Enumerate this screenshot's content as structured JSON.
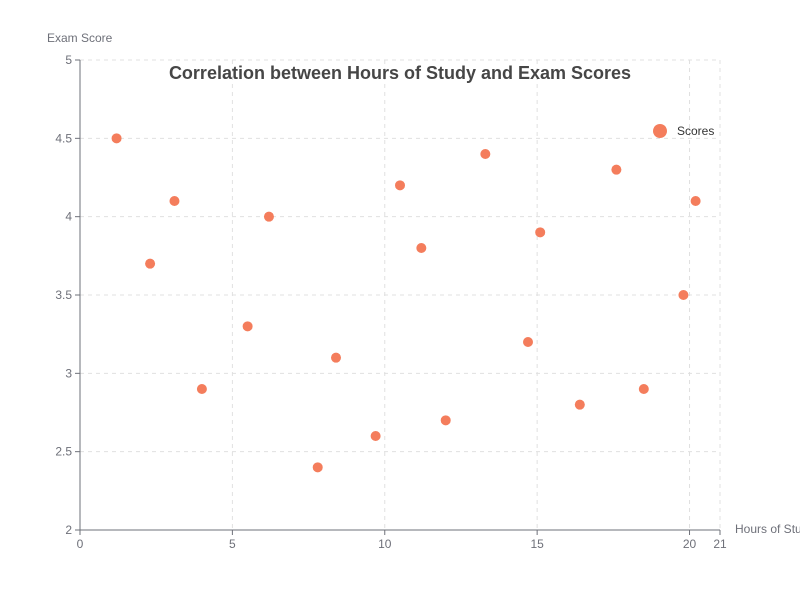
{
  "chart_data": {
    "type": "scatter",
    "title": "Correlation between Hours of Study and Exam Scores",
    "xlabel": "Hours of Study",
    "ylabel": "Exam Score",
    "xlim": [
      0,
      21
    ],
    "ylim": [
      2,
      5
    ],
    "x_ticks": [
      0,
      5,
      10,
      15,
      20,
      21
    ],
    "y_ticks": [
      2,
      2.5,
      3,
      3.5,
      4,
      4.5,
      5
    ],
    "grid": true,
    "legend_position": "top-right",
    "series": [
      {
        "name": "Scores",
        "color": "#f47d5c",
        "points": [
          [
            1.2,
            4.5
          ],
          [
            2.3,
            3.7
          ],
          [
            3.1,
            4.1
          ],
          [
            4.0,
            2.9
          ],
          [
            5.5,
            3.3
          ],
          [
            6.2,
            4.0
          ],
          [
            7.8,
            2.4
          ],
          [
            8.4,
            3.1
          ],
          [
            9.7,
            2.6
          ],
          [
            10.5,
            4.2
          ],
          [
            11.2,
            3.8
          ],
          [
            12.0,
            2.7
          ],
          [
            13.3,
            4.4
          ],
          [
            14.7,
            3.2
          ],
          [
            15.1,
            3.9
          ],
          [
            16.4,
            2.8
          ],
          [
            17.6,
            4.3
          ],
          [
            18.5,
            2.9
          ],
          [
            19.8,
            3.5
          ],
          [
            20.2,
            4.1
          ]
        ]
      }
    ]
  }
}
